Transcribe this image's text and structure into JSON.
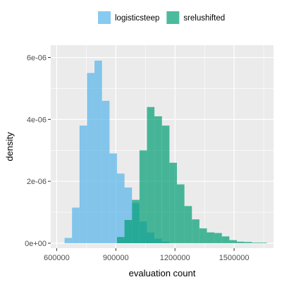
{
  "chart_data": {
    "type": "histogram",
    "xlabel": "evaluation count",
    "ylabel": "density",
    "xlim": [
      570000,
      1700000
    ],
    "ylim": [
      -1.6e-07,
      6.4e-06
    ],
    "x_ticks": [
      {
        "value": 600000,
        "label": "600000"
      },
      {
        "value": 900000,
        "label": "900000"
      },
      {
        "value": 1200000,
        "label": "1200000"
      },
      {
        "value": 1500000,
        "label": "1500000"
      }
    ],
    "y_ticks": [
      {
        "value": 0,
        "label": "0e+00"
      },
      {
        "value": 2e-06,
        "label": "2e-06"
      },
      {
        "value": 4e-06,
        "label": "4e-06"
      },
      {
        "value": 6e-06,
        "label": "6e-06"
      }
    ],
    "grid": true,
    "legend_position": "top",
    "bin_width": 38000,
    "series": [
      {
        "name": "logisticsteep",
        "color": "#56B4E9",
        "bins": [
          {
            "x0": 640000,
            "density": 1.7e-07
          },
          {
            "x0": 678000,
            "density": 1.15e-06
          },
          {
            "x0": 716000,
            "density": 3.8e-06
          },
          {
            "x0": 754000,
            "density": 5.5e-06
          },
          {
            "x0": 792000,
            "density": 5.9e-06
          },
          {
            "x0": 830000,
            "density": 4.6e-06
          },
          {
            "x0": 868000,
            "density": 2.9e-06
          },
          {
            "x0": 906000,
            "density": 2.25e-06
          },
          {
            "x0": 944000,
            "density": 1.8e-06
          },
          {
            "x0": 982000,
            "density": 1.3e-06
          },
          {
            "x0": 1020000,
            "density": 7e-07
          },
          {
            "x0": 1058000,
            "density": 3.5e-07
          },
          {
            "x0": 1096000,
            "density": 1.5e-07
          },
          {
            "x0": 1134000,
            "density": 5e-08
          }
        ]
      },
      {
        "name": "srelushifted",
        "color": "#009E73",
        "bins": [
          {
            "x0": 906000,
            "density": 2e-07
          },
          {
            "x0": 944000,
            "density": 7.5e-07
          },
          {
            "x0": 982000,
            "density": 1.4e-06
          },
          {
            "x0": 1020000,
            "density": 3e-06
          },
          {
            "x0": 1058000,
            "density": 4.4e-06
          },
          {
            "x0": 1096000,
            "density": 4.1e-06
          },
          {
            "x0": 1134000,
            "density": 3.8e-06
          },
          {
            "x0": 1172000,
            "density": 2.6e-06
          },
          {
            "x0": 1210000,
            "density": 1.9e-06
          },
          {
            "x0": 1248000,
            "density": 1.2e-06
          },
          {
            "x0": 1286000,
            "density": 7.7e-07
          },
          {
            "x0": 1324000,
            "density": 4.8e-07
          },
          {
            "x0": 1362000,
            "density": 3.5e-07
          },
          {
            "x0": 1400000,
            "density": 3.3e-07
          },
          {
            "x0": 1438000,
            "density": 2.2e-07
          },
          {
            "x0": 1476000,
            "density": 1e-07
          },
          {
            "x0": 1514000,
            "density": 5e-08
          },
          {
            "x0": 1552000,
            "density": 4e-08
          },
          {
            "x0": 1590000,
            "density": 2e-08
          },
          {
            "x0": 1628000,
            "density": 2e-08
          }
        ]
      }
    ]
  }
}
